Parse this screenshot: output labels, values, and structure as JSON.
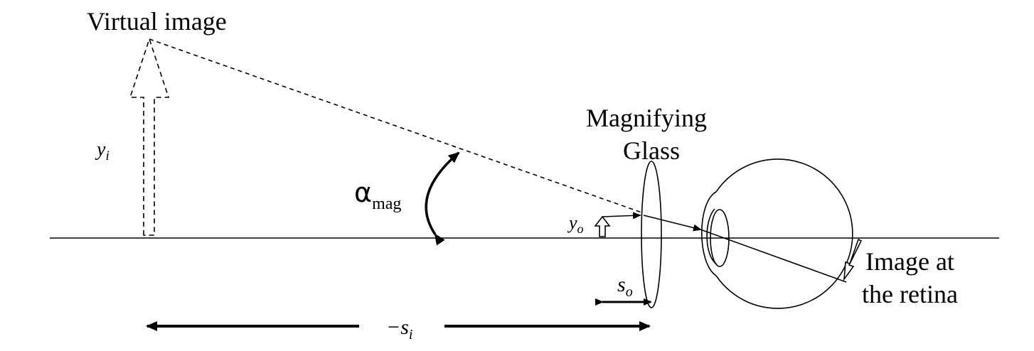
{
  "labels": {
    "virtual_image": "Virtual image",
    "y_i": "y",
    "y_i_sub": "i",
    "alpha": "α",
    "alpha_sub": "mag",
    "magnifying_line1": "Magnifying",
    "magnifying_line2": "Glass",
    "y_o": "y",
    "y_o_sub": "o",
    "s_o": "s",
    "s_o_sub": "o",
    "image_retina_line1": "Image at",
    "image_retina_line2": "the retina",
    "minus_s_i": "−s",
    "minus_s_i_sub": "i"
  },
  "colors": {
    "stroke": "#000000",
    "background": "#ffffff"
  }
}
